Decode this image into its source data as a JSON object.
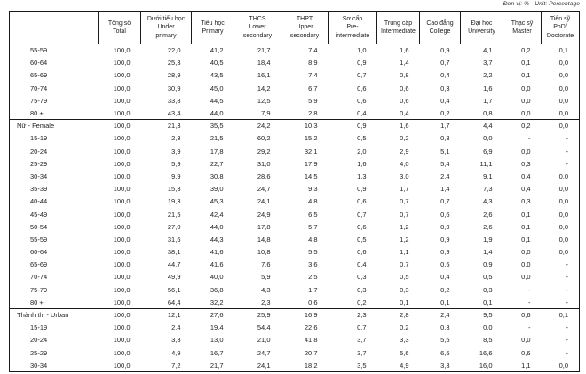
{
  "note": "Đơn vị: % - Unit: Percentage",
  "table": {
    "columns": [
      {
        "vi": "",
        "en": ""
      },
      {
        "vi": "Tổng số",
        "en": "Total"
      },
      {
        "vi": "Dưới tiểu học",
        "en": "Under\nprimary"
      },
      {
        "vi": "Tiểu học",
        "en": "Primary"
      },
      {
        "vi": "THCS",
        "en": "Lower\nsecondary"
      },
      {
        "vi": "THPT",
        "en": "Upper\nsecondary"
      },
      {
        "vi": "Sơ cấp",
        "en": "Pre-\nintermediate"
      },
      {
        "vi": "Trung cấp",
        "en": "Intermediate"
      },
      {
        "vi": "Cao đẳng",
        "en": "College"
      },
      {
        "vi": "Đại học",
        "en": "University"
      },
      {
        "vi": "Thạc sỹ",
        "en": "Master"
      },
      {
        "vi": "Tiến sỹ",
        "en": "PhD/\nDoctorate"
      }
    ],
    "rows": [
      {
        "label": "55-59",
        "indent": true,
        "separator": false,
        "values": [
          "100,0",
          "22,0",
          "41,2",
          "21,7",
          "7,4",
          "1,0",
          "1,6",
          "0,9",
          "4,1",
          "0,2",
          "0,1"
        ]
      },
      {
        "label": "60-64",
        "indent": true,
        "separator": false,
        "values": [
          "100,0",
          "25,3",
          "40,5",
          "18,4",
          "8,9",
          "0,9",
          "1,4",
          "0,7",
          "3,7",
          "0,1",
          "0,0"
        ]
      },
      {
        "label": "65-69",
        "indent": true,
        "separator": false,
        "values": [
          "100,0",
          "28,9",
          "43,5",
          "16,1",
          "7,4",
          "0,7",
          "0,8",
          "0,4",
          "2,2",
          "0,1",
          "0,0"
        ]
      },
      {
        "label": "70-74",
        "indent": true,
        "separator": false,
        "values": [
          "100,0",
          "30,9",
          "45,0",
          "14,2",
          "6,7",
          "0,6",
          "0,6",
          "0,3",
          "1,6",
          "0,0",
          "0,0"
        ]
      },
      {
        "label": "75-79",
        "indent": true,
        "separator": false,
        "values": [
          "100,0",
          "33,8",
          "44,5",
          "12,5",
          "5,9",
          "0,6",
          "0,6",
          "0,4",
          "1,7",
          "0,0",
          "0,0"
        ]
      },
      {
        "label": "80 +",
        "indent": true,
        "separator": false,
        "values": [
          "100,0",
          "43,4",
          "44,0",
          "7,9",
          "2,8",
          "0,4",
          "0,4",
          "0,2",
          "0,8",
          "0,0",
          "0,0"
        ]
      },
      {
        "label": "Nữ - Female",
        "indent": false,
        "separator": true,
        "values": [
          "100,0",
          "21,3",
          "35,5",
          "24,2",
          "10,3",
          "0,9",
          "1,6",
          "1,7",
          "4,4",
          "0,2",
          "0,0"
        ]
      },
      {
        "label": "15-19",
        "indent": true,
        "separator": false,
        "values": [
          "100,0",
          "2,3",
          "21,5",
          "60,2",
          "15,2",
          "0,5",
          "0,2",
          "0,3",
          "0,0",
          "-",
          "-"
        ]
      },
      {
        "label": "20-24",
        "indent": true,
        "separator": false,
        "values": [
          "100,0",
          "3,9",
          "17,8",
          "29,2",
          "32,1",
          "2,0",
          "2,9",
          "5,1",
          "6,9",
          "0,0",
          "-"
        ]
      },
      {
        "label": "25-29",
        "indent": true,
        "separator": false,
        "values": [
          "100,0",
          "5,9",
          "22,7",
          "31,0",
          "17,9",
          "1,6",
          "4,0",
          "5,4",
          "11,1",
          "0,3",
          "-"
        ]
      },
      {
        "label": "30-34",
        "indent": true,
        "separator": false,
        "values": [
          "100,0",
          "9,9",
          "30,8",
          "28,6",
          "14,5",
          "1,3",
          "3,0",
          "2,4",
          "9,1",
          "0,4",
          "0,0"
        ]
      },
      {
        "label": "35-39",
        "indent": true,
        "separator": false,
        "values": [
          "100,0",
          "15,3",
          "39,0",
          "24,7",
          "9,3",
          "0,9",
          "1,7",
          "1,4",
          "7,3",
          "0,4",
          "0,0"
        ]
      },
      {
        "label": "40-44",
        "indent": true,
        "separator": false,
        "values": [
          "100,0",
          "19,3",
          "45,3",
          "24,1",
          "4,8",
          "0,6",
          "0,7",
          "0,7",
          "4,3",
          "0,3",
          "0,0"
        ]
      },
      {
        "label": "45-49",
        "indent": true,
        "separator": false,
        "values": [
          "100,0",
          "21,5",
          "42,4",
          "24,9",
          "6,5",
          "0,7",
          "0,7",
          "0,6",
          "2,6",
          "0,1",
          "0,0"
        ]
      },
      {
        "label": "50-54",
        "indent": true,
        "separator": false,
        "values": [
          "100,0",
          "27,0",
          "44,0",
          "17,8",
          "5,7",
          "0,6",
          "1,2",
          "0,9",
          "2,6",
          "0,1",
          "0,0"
        ]
      },
      {
        "label": "55-59",
        "indent": true,
        "separator": false,
        "values": [
          "100,0",
          "31,6",
          "44,3",
          "14,8",
          "4,8",
          "0,5",
          "1,2",
          "0,9",
          "1,9",
          "0,1",
          "0,0"
        ]
      },
      {
        "label": "60-64",
        "indent": true,
        "separator": false,
        "values": [
          "100,0",
          "38,1",
          "41,6",
          "10,8",
          "5,5",
          "0,6",
          "1,1",
          "0,9",
          "1,4",
          "0,0",
          "0,0"
        ]
      },
      {
        "label": "65-69",
        "indent": true,
        "separator": false,
        "values": [
          "100,0",
          "44,7",
          "41,6",
          "7,6",
          "3,6",
          "0,4",
          "0,7",
          "0,5",
          "0,9",
          "0,0",
          "-"
        ]
      },
      {
        "label": "70-74",
        "indent": true,
        "separator": false,
        "values": [
          "100,0",
          "49,9",
          "40,0",
          "5,9",
          "2,5",
          "0,3",
          "0,5",
          "0,4",
          "0,5",
          "0,0",
          "-"
        ]
      },
      {
        "label": "75-79",
        "indent": true,
        "separator": false,
        "values": [
          "100,0",
          "56,1",
          "36,8",
          "4,3",
          "1,7",
          "0,3",
          "0,3",
          "0,2",
          "0,3",
          "-",
          "-"
        ]
      },
      {
        "label": "80 +",
        "indent": true,
        "separator": false,
        "values": [
          "100,0",
          "64,4",
          "32,2",
          "2,3",
          "0,6",
          "0,2",
          "0,1",
          "0,1",
          "0,1",
          "-",
          "-"
        ]
      },
      {
        "label": "Thành thị - Urban",
        "indent": false,
        "separator": true,
        "values": [
          "100,0",
          "12,1",
          "27,6",
          "25,9",
          "16,9",
          "2,3",
          "2,8",
          "2,4",
          "9,5",
          "0,6",
          "0,1"
        ]
      },
      {
        "label": "15-19",
        "indent": true,
        "separator": false,
        "values": [
          "100,0",
          "2,4",
          "19,4",
          "54,4",
          "22,6",
          "0,7",
          "0,2",
          "0,3",
          "0,0",
          "-",
          "-"
        ]
      },
      {
        "label": "20-24",
        "indent": true,
        "separator": false,
        "values": [
          "100,0",
          "3,3",
          "13,0",
          "21,0",
          "41,8",
          "3,7",
          "3,3",
          "5,5",
          "8,5",
          "0,0",
          "-"
        ]
      },
      {
        "label": "25-29",
        "indent": true,
        "separator": false,
        "values": [
          "100,0",
          "4,9",
          "16,7",
          "24,7",
          "20,7",
          "3,7",
          "5,6",
          "6,5",
          "16,6",
          "0,6",
          "-"
        ]
      },
      {
        "label": "30-34",
        "indent": true,
        "separator": false,
        "values": [
          "100,0",
          "7,2",
          "21,7",
          "24,1",
          "18,2",
          "3,5",
          "4,9",
          "3,3",
          "16,0",
          "1,1",
          "0,0"
        ]
      }
    ]
  }
}
